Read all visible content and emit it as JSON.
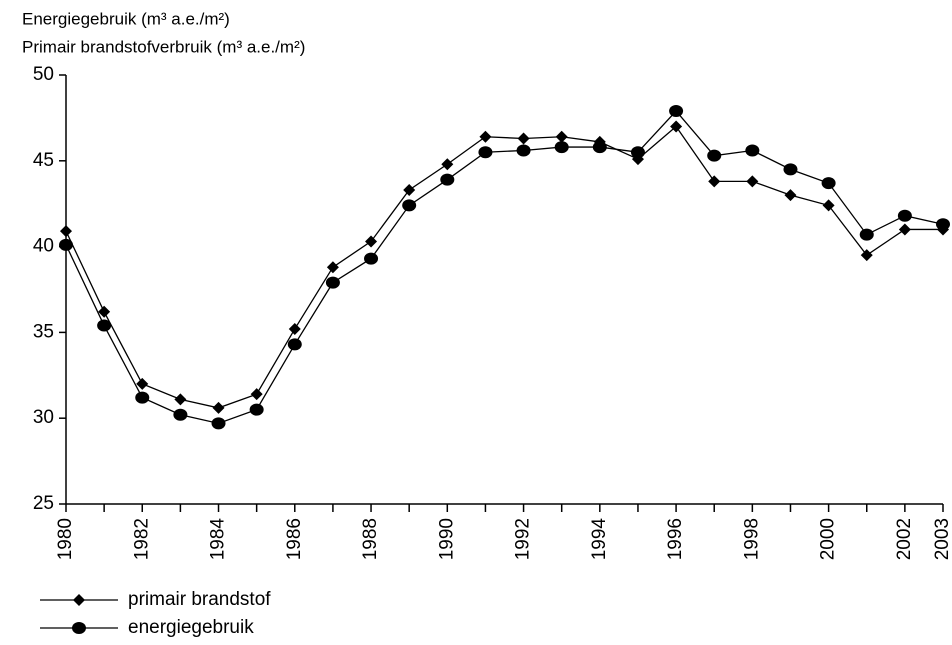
{
  "chart_data": {
    "type": "line",
    "title": "Energiegebruik (m³ a.e./m²)",
    "subtitle": "Primair brandstofverbruik (m³ a.e./m²)",
    "x": [
      1980,
      1981,
      1982,
      1983,
      1984,
      1985,
      1986,
      1987,
      1988,
      1989,
      1990,
      1991,
      1992,
      1993,
      1994,
      1995,
      1996,
      1997,
      1998,
      1999,
      2000,
      2001,
      2002,
      2003
    ],
    "series": [
      {
        "name": "primair brandstof",
        "color": "#000000",
        "marker": "diamond",
        "values": [
          40.9,
          36.2,
          32.0,
          31.1,
          30.6,
          31.4,
          35.2,
          38.8,
          40.3,
          43.3,
          44.8,
          46.4,
          46.3,
          46.4,
          46.1,
          45.1,
          47.0,
          43.8,
          43.8,
          43.0,
          42.4,
          39.5,
          41.0,
          41.0
        ]
      },
      {
        "name": "energiegebruik",
        "color": "#000000",
        "marker": "circle",
        "values": [
          40.1,
          35.4,
          31.2,
          30.2,
          29.7,
          30.5,
          34.3,
          37.9,
          39.3,
          42.4,
          43.9,
          45.5,
          45.6,
          45.8,
          45.8,
          45.5,
          47.9,
          45.3,
          45.6,
          44.5,
          43.7,
          40.7,
          41.8,
          41.3
        ]
      }
    ],
    "xlim": [
      1980,
      2003
    ],
    "xticks": [
      1980,
      1982,
      1984,
      1986,
      1988,
      1990,
      1992,
      1994,
      1996,
      1998,
      2000,
      2002,
      2003
    ],
    "ylim": [
      25,
      50
    ],
    "yticks": [
      25,
      30,
      35,
      40,
      45,
      50
    ],
    "legend": "bottom-left"
  }
}
